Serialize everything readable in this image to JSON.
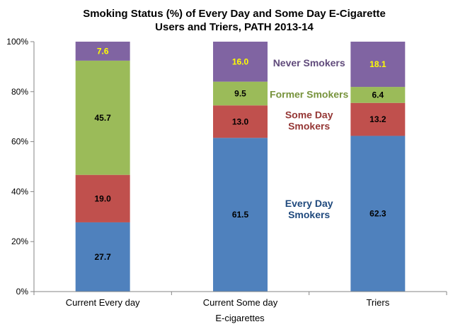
{
  "chart_data": {
    "type": "bar",
    "stacked": true,
    "title": [
      "Smoking Status (%) of Every Day and Some Day E-Cigarette",
      "Users and Triers, PATH 2013-14"
    ],
    "xlabel": "E-cigarettes",
    "ylabel": "",
    "ylim": [
      0,
      100
    ],
    "yticks": [
      "0%",
      "20%",
      "40%",
      "60%",
      "80%",
      "100%"
    ],
    "grid": false,
    "categories": [
      "Current Every day",
      "Current Some day",
      "Triers"
    ],
    "series": [
      {
        "name": "Every Day Smokers",
        "color": "#4f81bd",
        "label_color": "#000000",
        "values": [
          27.7,
          61.5,
          62.3
        ],
        "labels": [
          "27.7",
          "61.5",
          "62.3"
        ]
      },
      {
        "name": "Some Day Smokers",
        "color": "#c0504d",
        "label_color": "#000000",
        "values": [
          19.0,
          13.0,
          13.2
        ],
        "labels": [
          "19.0",
          "13.0",
          "13.2"
        ]
      },
      {
        "name": "Former Smokers",
        "color": "#9bbb59",
        "label_color": "#000000",
        "values": [
          45.7,
          9.5,
          6.4
        ],
        "labels": [
          "45.7",
          "9.5",
          "6.4"
        ]
      },
      {
        "name": "Never Smokers",
        "color": "#8064a2",
        "label_color": "#ffff00",
        "values": [
          7.6,
          16.0,
          18.1
        ],
        "labels": [
          "7.6",
          "16.0",
          "18.1"
        ]
      }
    ],
    "annotations": [
      {
        "series": "Never Smokers",
        "lines": [
          "Never Smokers"
        ],
        "color": "#604a7b"
      },
      {
        "series": "Former Smokers",
        "lines": [
          "Former Smokers"
        ],
        "color": "#77933c"
      },
      {
        "series": "Some Day Smokers",
        "lines": [
          "Some Day",
          "Smokers"
        ],
        "color": "#953735"
      },
      {
        "series": "Every Day Smokers",
        "lines": [
          "Every Day",
          "Smokers"
        ],
        "color": "#1f497d"
      }
    ]
  }
}
